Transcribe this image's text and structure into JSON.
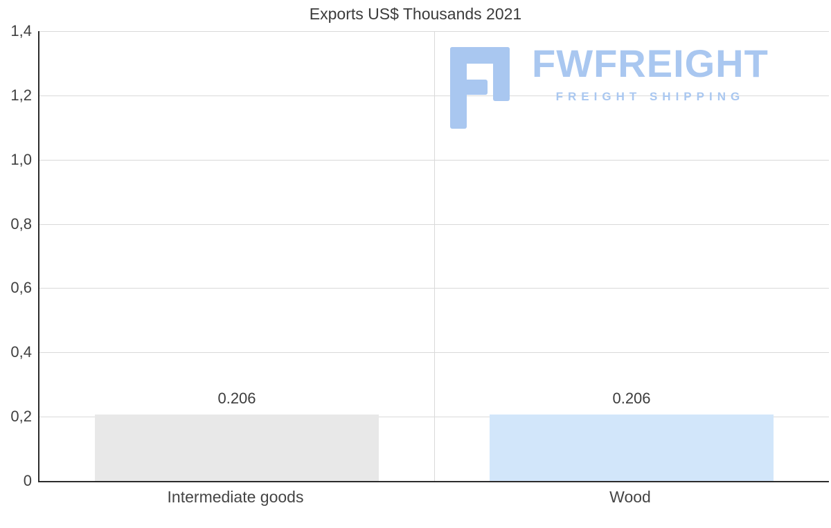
{
  "title": "Exports US$ Thousands 2021",
  "watermark": {
    "brand": "FWFREIGHT",
    "tagline": "FREIGHT SHIPPING",
    "color": "#a9c7f0"
  },
  "colors": {
    "axis": "#2b2b2b",
    "gridline": "#d9d9d9",
    "text": "#3f3f3f"
  },
  "chart_data": {
    "type": "bar",
    "title": "Exports US$ Thousands 2021",
    "categories": [
      "Intermediate goods",
      "Wood"
    ],
    "values": [
      0.206,
      0.206
    ],
    "value_labels": [
      "0.206",
      "0.206"
    ],
    "bar_colors": [
      "#e8e8e8",
      "#d2e6fa"
    ],
    "xlabel": "",
    "ylabel": "",
    "ylim": [
      0,
      1.4
    ],
    "ytick_step": 0.2,
    "ytick_labels": [
      "0",
      "0,2",
      "0,4",
      "0,6",
      "0,8",
      "1,0",
      "1,2",
      "1,4"
    ],
    "grid": true,
    "legend_position": "none",
    "decimal_separator_axis": ","
  }
}
